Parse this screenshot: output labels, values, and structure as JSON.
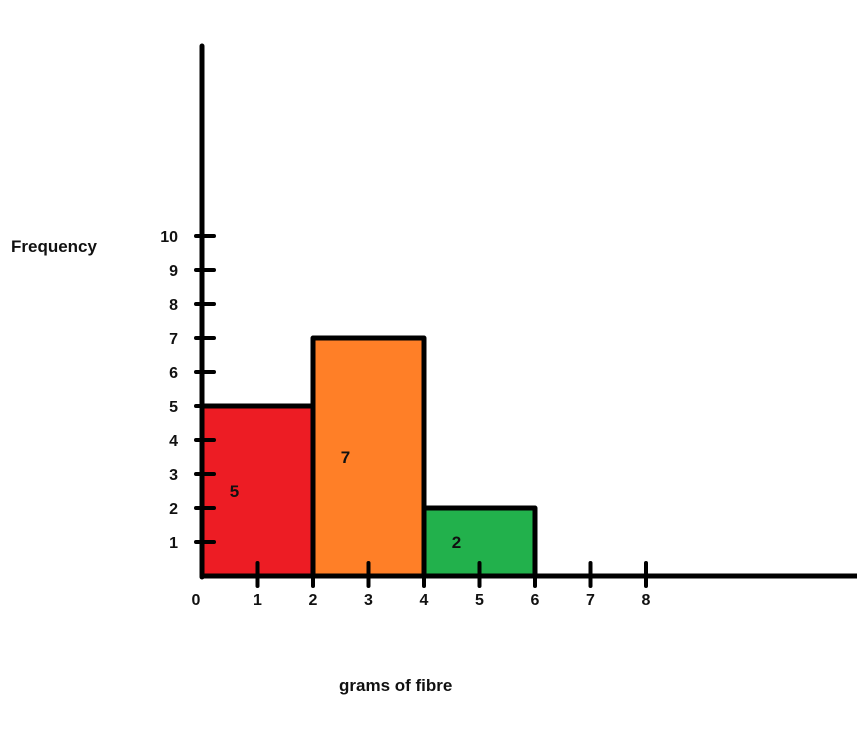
{
  "chart_data": {
    "type": "bar",
    "xlabel": "grams of fibre",
    "ylabel": "Frequency",
    "x_ticks": [
      "0",
      "1",
      "2",
      "3",
      "4",
      "5",
      "6",
      "7",
      "8"
    ],
    "y_ticks": [
      "1",
      "2",
      "3",
      "4",
      "5",
      "6",
      "7",
      "8",
      "9",
      "10"
    ],
    "bins": [
      {
        "range": [
          0,
          2
        ],
        "value": 5,
        "label": "5",
        "color": "#ed1c24",
        "label_color": "#f7a8b8"
      },
      {
        "range": [
          2,
          4
        ],
        "value": 7,
        "label": "7",
        "color": "#ff7f27",
        "label_color": "#ffc0b0"
      },
      {
        "range": [
          4,
          6
        ],
        "value": 2,
        "label": "2",
        "color": "#22b14c",
        "label_color": "#e8d0c8"
      }
    ]
  }
}
